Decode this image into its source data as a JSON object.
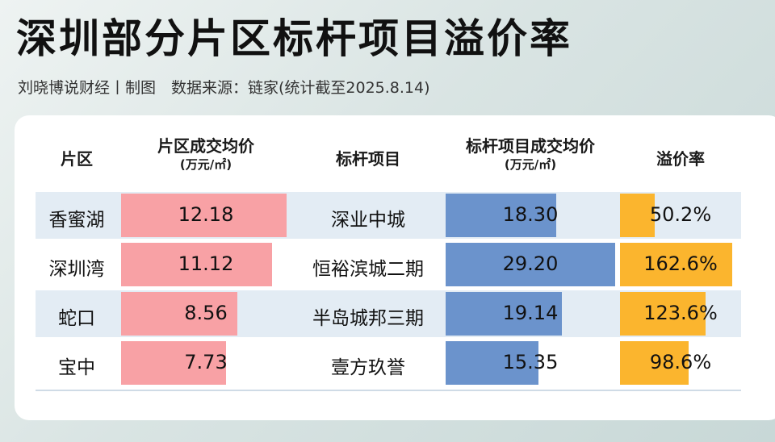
{
  "title": "深圳部分片区标杆项目溢价率",
  "subtitle": "刘晓博说财经丨制图　数据来源：链家(统计截至2025.8.14)",
  "colors": {
    "district_bar": "#f8a1a5",
    "project_bar": "#6b93cc",
    "premium_bar": "#fbb52e",
    "row_band": "#e3ecf4"
  },
  "chart_data": {
    "type": "table",
    "columns": [
      {
        "name": "片区",
        "unit": ""
      },
      {
        "name": "片区成交均价",
        "unit": "(万元/㎡)"
      },
      {
        "name": "标杆项目",
        "unit": ""
      },
      {
        "name": "标杆项目成交均价",
        "unit": "(万元/㎡)"
      },
      {
        "name": "溢价率",
        "unit": ""
      }
    ],
    "rows": [
      {
        "district": "香蜜湖",
        "district_price": 12.18,
        "district_price_label": "12.18",
        "project": "深业中城",
        "project_price": 18.3,
        "project_price_label": "18.30",
        "premium": 50.2,
        "premium_label": "50.2%"
      },
      {
        "district": "深圳湾",
        "district_price": 11.12,
        "district_price_label": "11.12",
        "project": "恒裕滨城二期",
        "project_price": 29.2,
        "project_price_label": "29.20",
        "premium": 162.6,
        "premium_label": "162.6%"
      },
      {
        "district": "蛇口",
        "district_price": 8.56,
        "district_price_label": "8.56",
        "project": "半岛城邦三期",
        "project_price": 19.14,
        "project_price_label": "19.14",
        "premium": 123.6,
        "premium_label": "123.6%"
      },
      {
        "district": "宝中",
        "district_price": 7.73,
        "district_price_label": "7.73",
        "project": "壹方玖誉",
        "project_price": 15.35,
        "project_price_label": "15.35",
        "premium": 98.6,
        "premium_label": "98.6%"
      }
    ]
  }
}
